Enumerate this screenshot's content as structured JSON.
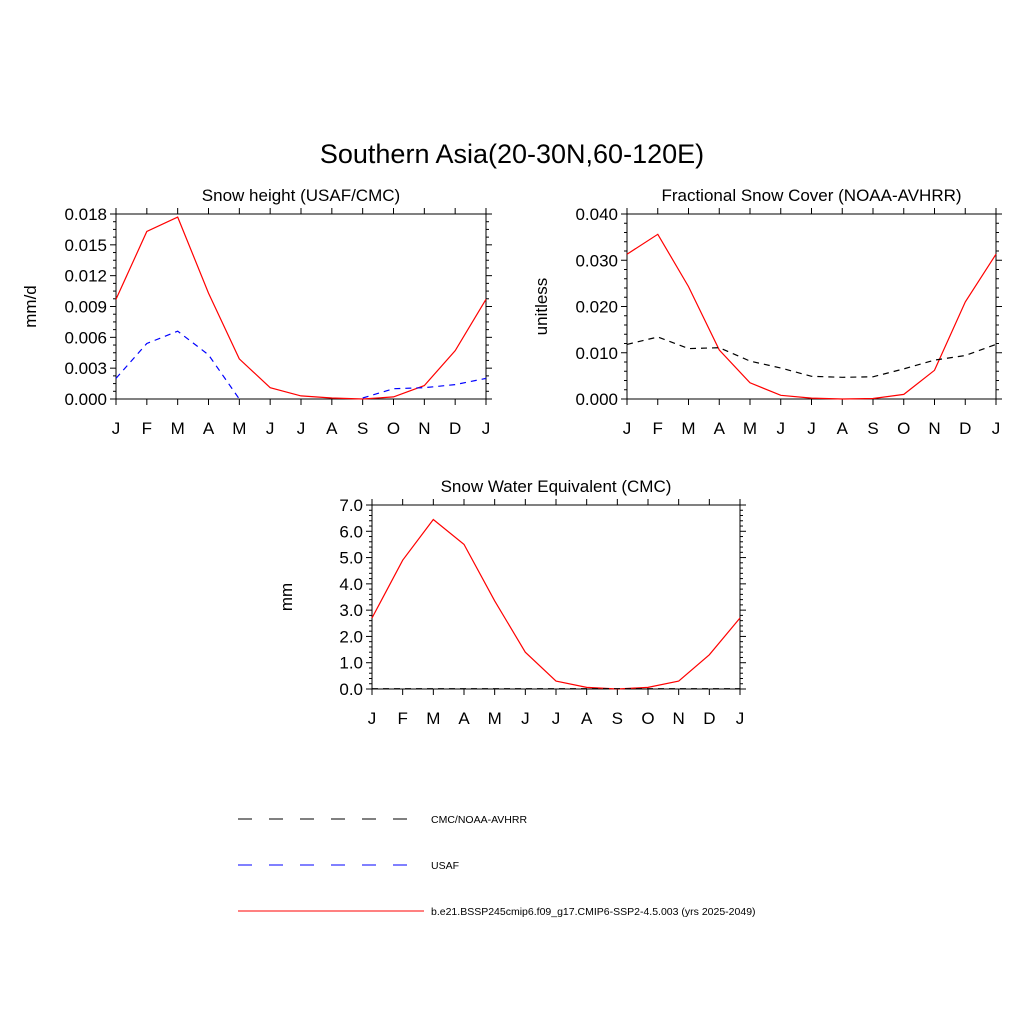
{
  "figure": {
    "title": "Southern Asia(20-30N,60-120E)"
  },
  "legend": [
    {
      "label": "CMC/NOAA-AVHRR",
      "color": "#000000",
      "dash": "dashed"
    },
    {
      "label": "USAF",
      "color": "#0000ff",
      "dash": "dashed"
    },
    {
      "label": "b.e21.BSSP245cmip6.f09_g17.CMIP6-SSP2-4.5.003 (yrs 2025-2049)",
      "color": "#ff0000",
      "dash": "solid"
    }
  ],
  "chart_data": [
    {
      "type": "line",
      "title": "Snow height (USAF/CMC)",
      "ylabel": "mm/d",
      "ylim": [
        0,
        0.018
      ],
      "yticks": [
        "0.000",
        "0.003",
        "0.006",
        "0.009",
        "0.012",
        "0.015",
        "0.018"
      ],
      "x": [
        "J",
        "F",
        "M",
        "A",
        "M",
        "J",
        "J",
        "A",
        "S",
        "O",
        "N",
        "D",
        "J"
      ],
      "series": [
        {
          "name": "b.e21.BSSP245cmip6.f09_g17.CMIP6-SSP2-4.5.003 (yrs 2025-2049)",
          "color": "#ff0000",
          "dash": "solid",
          "values": [
            0.0097,
            0.0163,
            0.0177,
            0.0103,
            0.0039,
            0.0011,
            0.0003,
            0.0001,
            0.0,
            0.0002,
            0.0013,
            0.0047,
            0.0097
          ]
        },
        {
          "name": "USAF",
          "color": "#0000ff",
          "dash": "dashed",
          "values": [
            0.002,
            0.0054,
            0.0066,
            0.0043,
            0.0,
            null,
            null,
            null,
            0.0001,
            0.001,
            0.0011,
            0.0014,
            0.002
          ]
        }
      ]
    },
    {
      "type": "line",
      "title": "Fractional Snow Cover (NOAA-AVHRR)",
      "ylabel": "unitless",
      "ylim": [
        0,
        0.04
      ],
      "yticks": [
        "0.000",
        "0.010",
        "0.020",
        "0.030",
        "0.040"
      ],
      "x": [
        "J",
        "F",
        "M",
        "A",
        "M",
        "J",
        "J",
        "A",
        "S",
        "O",
        "N",
        "D",
        "J"
      ],
      "series": [
        {
          "name": "b.e21.BSSP245cmip6.f09_g17.CMIP6-SSP2-4.5.003 (yrs 2025-2049)",
          "color": "#ff0000",
          "dash": "solid",
          "values": [
            0.0313,
            0.0356,
            0.0243,
            0.0106,
            0.0035,
            0.0008,
            0.0002,
            0.0,
            0.0001,
            0.001,
            0.0062,
            0.021,
            0.0313
          ]
        },
        {
          "name": "CMC/NOAA-AVHRR",
          "color": "#000000",
          "dash": "dashed",
          "values": [
            0.0118,
            0.0134,
            0.0109,
            0.0111,
            0.0082,
            0.0067,
            0.0049,
            0.0047,
            0.0048,
            0.0065,
            0.0084,
            0.0094,
            0.0118
          ]
        }
      ]
    },
    {
      "type": "line",
      "title": "Snow Water Equivalent (CMC)",
      "ylabel": "mm",
      "ylim": [
        0,
        7
      ],
      "yticks": [
        "0.0",
        "1.0",
        "2.0",
        "3.0",
        "4.0",
        "5.0",
        "6.0",
        "7.0"
      ],
      "x": [
        "J",
        "F",
        "M",
        "A",
        "M",
        "J",
        "J",
        "A",
        "S",
        "O",
        "N",
        "D",
        "J"
      ],
      "series": [
        {
          "name": "b.e21.BSSP245cmip6.f09_g17.CMIP6-SSP2-4.5.003 (yrs 2025-2049)",
          "color": "#ff0000",
          "dash": "solid",
          "values": [
            2.7,
            4.9,
            6.45,
            5.5,
            3.35,
            1.4,
            0.3,
            0.06,
            0.0,
            0.06,
            0.3,
            1.3,
            2.7
          ]
        },
        {
          "name": "CMC/NOAA-AVHRR",
          "color": "#000000",
          "dash": "dashed",
          "values": [
            0.01,
            0.01,
            0.01,
            0.01,
            0.01,
            0.01,
            0.01,
            0.01,
            0.01,
            0.01,
            0.01,
            0.01,
            0.01
          ]
        }
      ]
    }
  ]
}
